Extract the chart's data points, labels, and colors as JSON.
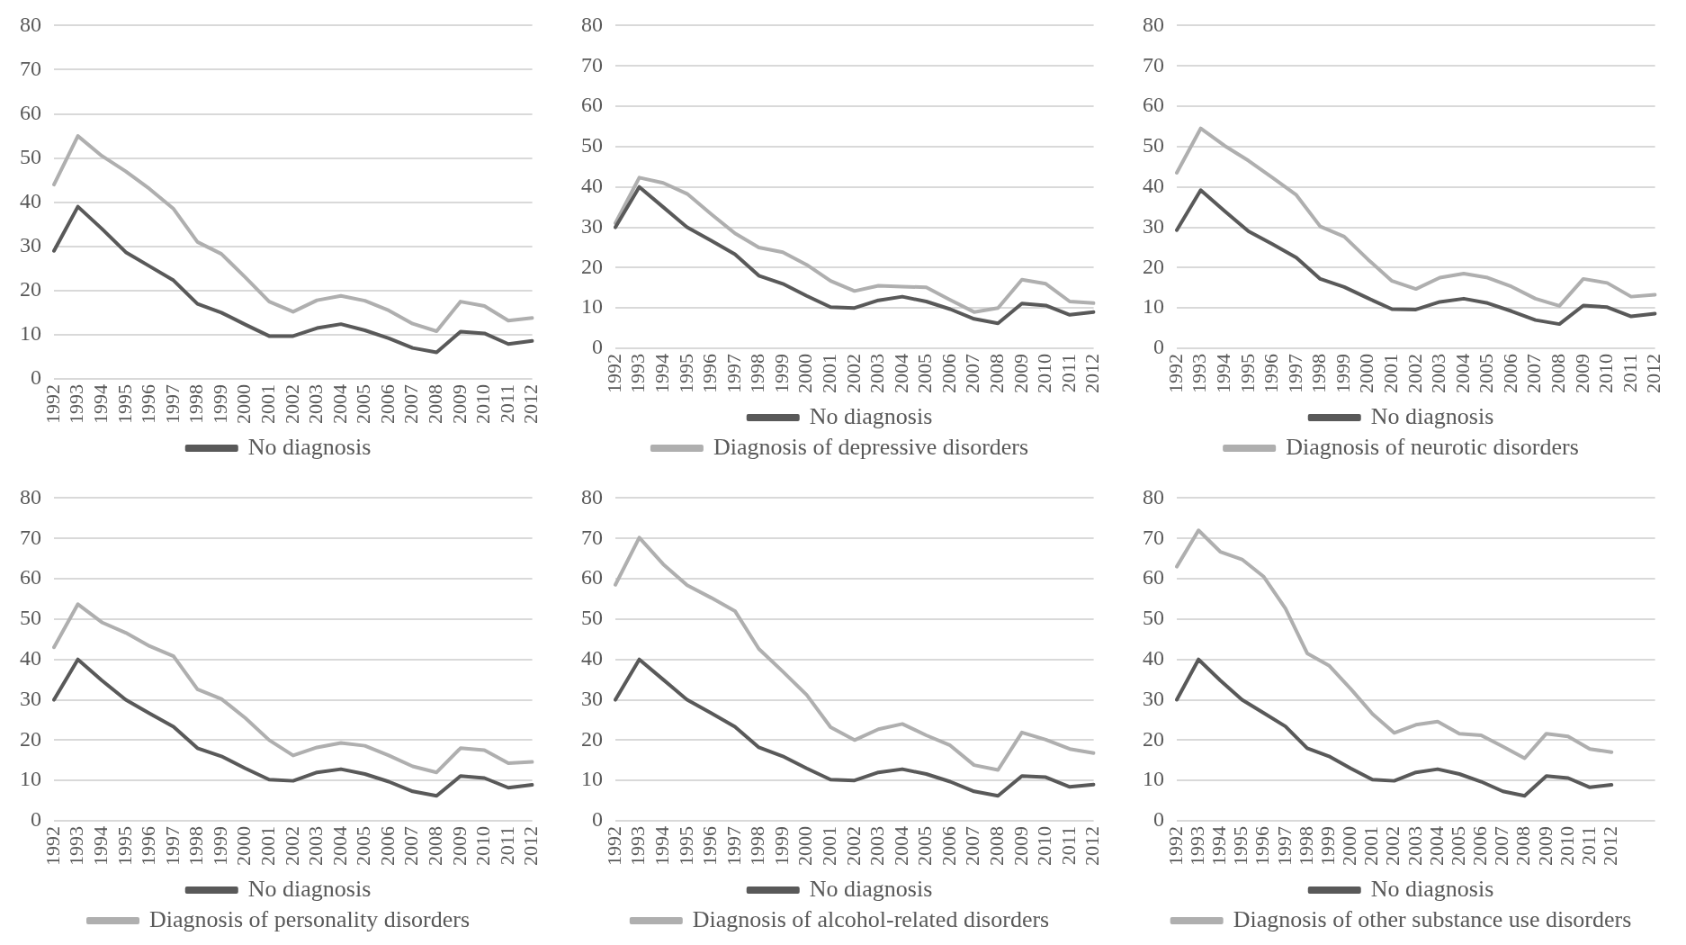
{
  "chart_data": [
    {
      "type": "line",
      "categories": [
        "1992",
        "1993",
        "1994",
        "1995",
        "1996",
        "1997",
        "1998",
        "1999",
        "2000",
        "2001",
        "2002",
        "2003",
        "2004",
        "2005",
        "2006",
        "2007",
        "2008",
        "2009",
        "2010",
        "2011",
        "2012"
      ],
      "ylim": [
        0,
        80
      ],
      "yticks": [
        0,
        10,
        20,
        30,
        40,
        50,
        60,
        70,
        80
      ],
      "grid": "y",
      "legend": "bottom",
      "series": [
        {
          "name": "No diagnosis",
          "color": "#595959",
          "values": [
            29,
            39,
            34,
            28.7,
            25.5,
            22.3,
            17,
            15,
            12.3,
            9.7,
            9.7,
            11.5,
            12.4,
            11,
            9.2,
            7,
            6,
            10.7,
            10.3,
            7.9,
            8.6
          ]
        },
        {
          "color": "#afafaf",
          "values": [
            44,
            55,
            50.5,
            47,
            43,
            38.5,
            31,
            28.3,
            23,
            17.5,
            15.2,
            17.8,
            18.8,
            17.7,
            15.5,
            12.5,
            10.8,
            17.5,
            16.5,
            13.2,
            13.8
          ]
        }
      ]
    },
    {
      "type": "line",
      "categories": [
        "1992",
        "1993",
        "1994",
        "1995",
        "1996",
        "1997",
        "1998",
        "1999",
        "2000",
        "2001",
        "2002",
        "2003",
        "2004",
        "2005",
        "2006",
        "2007",
        "2008",
        "2009",
        "2010",
        "2011",
        "2012"
      ],
      "ylim": [
        0,
        80
      ],
      "yticks": [
        0,
        10,
        20,
        30,
        40,
        50,
        60,
        70,
        80
      ],
      "grid": "y",
      "legend": "bottom",
      "series": [
        {
          "name": "No diagnosis",
          "color": "#595959",
          "values": [
            30,
            40,
            35,
            30,
            26.7,
            23.3,
            18,
            16,
            13,
            10.2,
            10,
            11.9,
            12.8,
            11.6,
            9.7,
            7.3,
            6.2,
            11.1,
            10.6,
            8.3,
            9
          ]
        },
        {
          "name": "Diagnosis of depressive disorders",
          "color": "#afafaf",
          "values": [
            31,
            42.3,
            41,
            38.3,
            33.3,
            28.5,
            25,
            23.8,
            20.7,
            16.7,
            14.2,
            15.5,
            15.3,
            15.1,
            12,
            9,
            10,
            17,
            16,
            11.6,
            11.2
          ]
        }
      ]
    },
    {
      "type": "line",
      "categories": [
        "1992",
        "1993",
        "1994",
        "1995",
        "1996",
        "1997",
        "1998",
        "1999",
        "2000",
        "2001",
        "2002",
        "2003",
        "2004",
        "2005",
        "2006",
        "2007",
        "2008",
        "2009",
        "2010",
        "2011",
        "2012"
      ],
      "ylim": [
        0,
        80
      ],
      "yticks": [
        0,
        10,
        20,
        30,
        40,
        50,
        60,
        70,
        80
      ],
      "grid": "y",
      "legend": "bottom",
      "series": [
        {
          "name": "No diagnosis",
          "color": "#595959",
          "values": [
            29.3,
            39.2,
            34,
            29,
            25.8,
            22.5,
            17.2,
            15.2,
            12.4,
            9.7,
            9.6,
            11.5,
            12.3,
            11.2,
            9.2,
            7,
            6,
            10.6,
            10.2,
            7.9,
            8.6
          ]
        },
        {
          "name": "Diagnosis of neurotic disorders",
          "color": "#afafaf",
          "values": [
            43.5,
            54.5,
            50.2,
            46.5,
            42.3,
            38,
            30.2,
            27.7,
            22,
            16.7,
            14.7,
            17.5,
            18.5,
            17.5,
            15.3,
            12.3,
            10.5,
            17.2,
            16.2,
            12.8,
            13.3
          ]
        }
      ]
    },
    {
      "type": "line",
      "categories": [
        "1992",
        "1993",
        "1994",
        "1995",
        "1996",
        "1997",
        "1998",
        "1999",
        "2000",
        "2001",
        "2002",
        "2003",
        "2004",
        "2005",
        "2006",
        "2007",
        "2008",
        "2009",
        "2010",
        "2011",
        "2012"
      ],
      "ylim": [
        0,
        80
      ],
      "yticks": [
        0,
        10,
        20,
        30,
        40,
        50,
        60,
        70,
        80
      ],
      "grid": "y",
      "legend": "bottom",
      "series": [
        {
          "name": "No diagnosis",
          "color": "#595959",
          "values": [
            30,
            40,
            34.8,
            30,
            26.6,
            23.3,
            18,
            16,
            13,
            10.2,
            9.9,
            12,
            12.8,
            11.6,
            9.7,
            7.3,
            6.2,
            11.1,
            10.6,
            8.2,
            8.9
          ]
        },
        {
          "name": "Diagnosis of personality disorders",
          "color": "#afafaf",
          "values": [
            43,
            53.7,
            49.2,
            46.6,
            43.3,
            40.8,
            32.6,
            30.2,
            25.5,
            20,
            16.2,
            18.2,
            19.3,
            18.6,
            16.2,
            13.5,
            12,
            18,
            17.5,
            14.3,
            14.6
          ]
        }
      ]
    },
    {
      "type": "line",
      "categories": [
        "1992",
        "1993",
        "1994",
        "1995",
        "1996",
        "1997",
        "1998",
        "1999",
        "2000",
        "2001",
        "2002",
        "2003",
        "2004",
        "2005",
        "2006",
        "2007",
        "2008",
        "2009",
        "2010",
        "2011",
        "2012"
      ],
      "ylim": [
        0,
        80
      ],
      "yticks": [
        0,
        10,
        20,
        30,
        40,
        50,
        60,
        70,
        80
      ],
      "grid": "y",
      "legend": "bottom",
      "series": [
        {
          "name": "No diagnosis",
          "color": "#595959",
          "values": [
            30,
            40,
            35,
            30,
            26.7,
            23.3,
            18.2,
            16,
            13,
            10.2,
            10,
            12,
            12.8,
            11.6,
            9.7,
            7.3,
            6.2,
            11.1,
            10.8,
            8.4,
            9
          ]
        },
        {
          "name": "Diagnosis of alcohol-related disorders",
          "color": "#afafaf",
          "values": [
            58.5,
            70.2,
            63.6,
            58.4,
            55.3,
            52,
            42.6,
            37,
            31.2,
            23.2,
            20,
            22.7,
            24,
            21.2,
            18.7,
            13.8,
            12.6,
            21.9,
            20.1,
            17.8,
            16.8
          ]
        }
      ]
    },
    {
      "type": "line",
      "categories": [
        "1992",
        "1993",
        "1994",
        "1995",
        "1996",
        "1997",
        "1998",
        "1999",
        "2000",
        "2001",
        "2002",
        "2003",
        "2004",
        "2005",
        "2006",
        "2007",
        "2008",
        "2009",
        "2010",
        "2011",
        "2012",
        null,
        null
      ],
      "ylim": [
        0,
        80
      ],
      "yticks": [
        0,
        10,
        20,
        30,
        40,
        50,
        60,
        70,
        80
      ],
      "grid": "y",
      "legend": "bottom",
      "series": [
        {
          "name": "No diagnosis",
          "color": "#595959",
          "values": [
            30,
            40,
            34.8,
            30,
            26.7,
            23.4,
            18,
            16,
            13,
            10.2,
            9.9,
            12,
            12.8,
            11.6,
            9.7,
            7.3,
            6.2,
            11.1,
            10.6,
            8.3,
            8.9,
            null,
            null
          ]
        },
        {
          "name": "Diagnosis of other substance use disorders",
          "color": "#afafaf",
          "values": [
            63,
            72,
            66.7,
            64.8,
            60.5,
            52.6,
            41.5,
            38.5,
            32.7,
            26.5,
            21.8,
            23.8,
            24.6,
            21.6,
            21.2,
            18.4,
            15.5,
            21.6,
            20.9,
            17.8,
            17,
            null,
            null
          ]
        }
      ]
    }
  ]
}
